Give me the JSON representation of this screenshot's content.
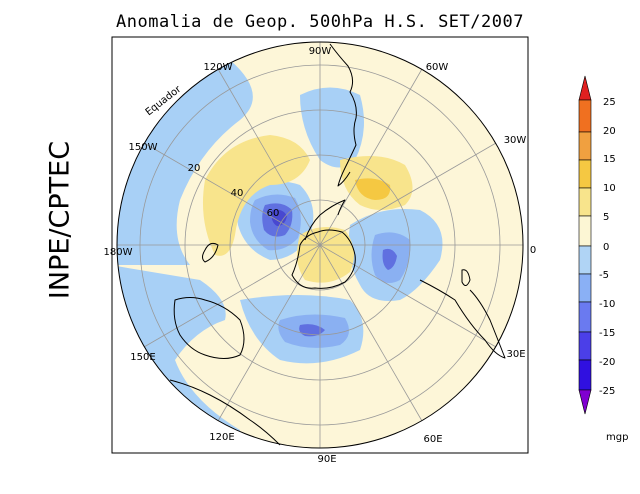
{
  "title": "Anomalia de Geop. 500hPa H.S. SET/2007",
  "side_label": "INPE/CPTEC",
  "map": {
    "longitude_labels": {
      "top": "90W",
      "upper_right": "60W",
      "right_upper": "30W",
      "right": "0",
      "right_lower": "30E",
      "lower_right": "60E",
      "bottom": "90E",
      "lower_left": "120E",
      "left_lower": "150E",
      "left": "180W",
      "left_upper": "150W",
      "upper_left": "120W"
    },
    "latitude_labels": {
      "lat20": "20",
      "lat40": "40",
      "lat60": "60"
    },
    "equator_label": "Equador"
  },
  "colorbar": {
    "levels": [
      "25",
      "20",
      "15",
      "10",
      "5",
      "0",
      "-5",
      "-10",
      "-15",
      "-20",
      "-25"
    ],
    "unit": "mgp",
    "colors": [
      "#e02020",
      "#f07020",
      "#f0a040",
      "#f5c842",
      "#f8e48c",
      "#fcf6d4",
      "#b0d4f5",
      "#8ab0f5",
      "#6a7af0",
      "#4b3fe8",
      "#3010e0",
      "#8000d0"
    ]
  },
  "field_colors": {
    "neg_light": "#a8d0f6",
    "neg_mid": "#8ab0f2",
    "neg_dark": "#6070e0",
    "neg_deep": "#4848d0",
    "pos_light": "#fdf5d2",
    "pos_mid": "#f8e48c",
    "pos_dark": "#f5c842",
    "pos_deep": "#f0b040",
    "background": "#fdf6d8"
  }
}
